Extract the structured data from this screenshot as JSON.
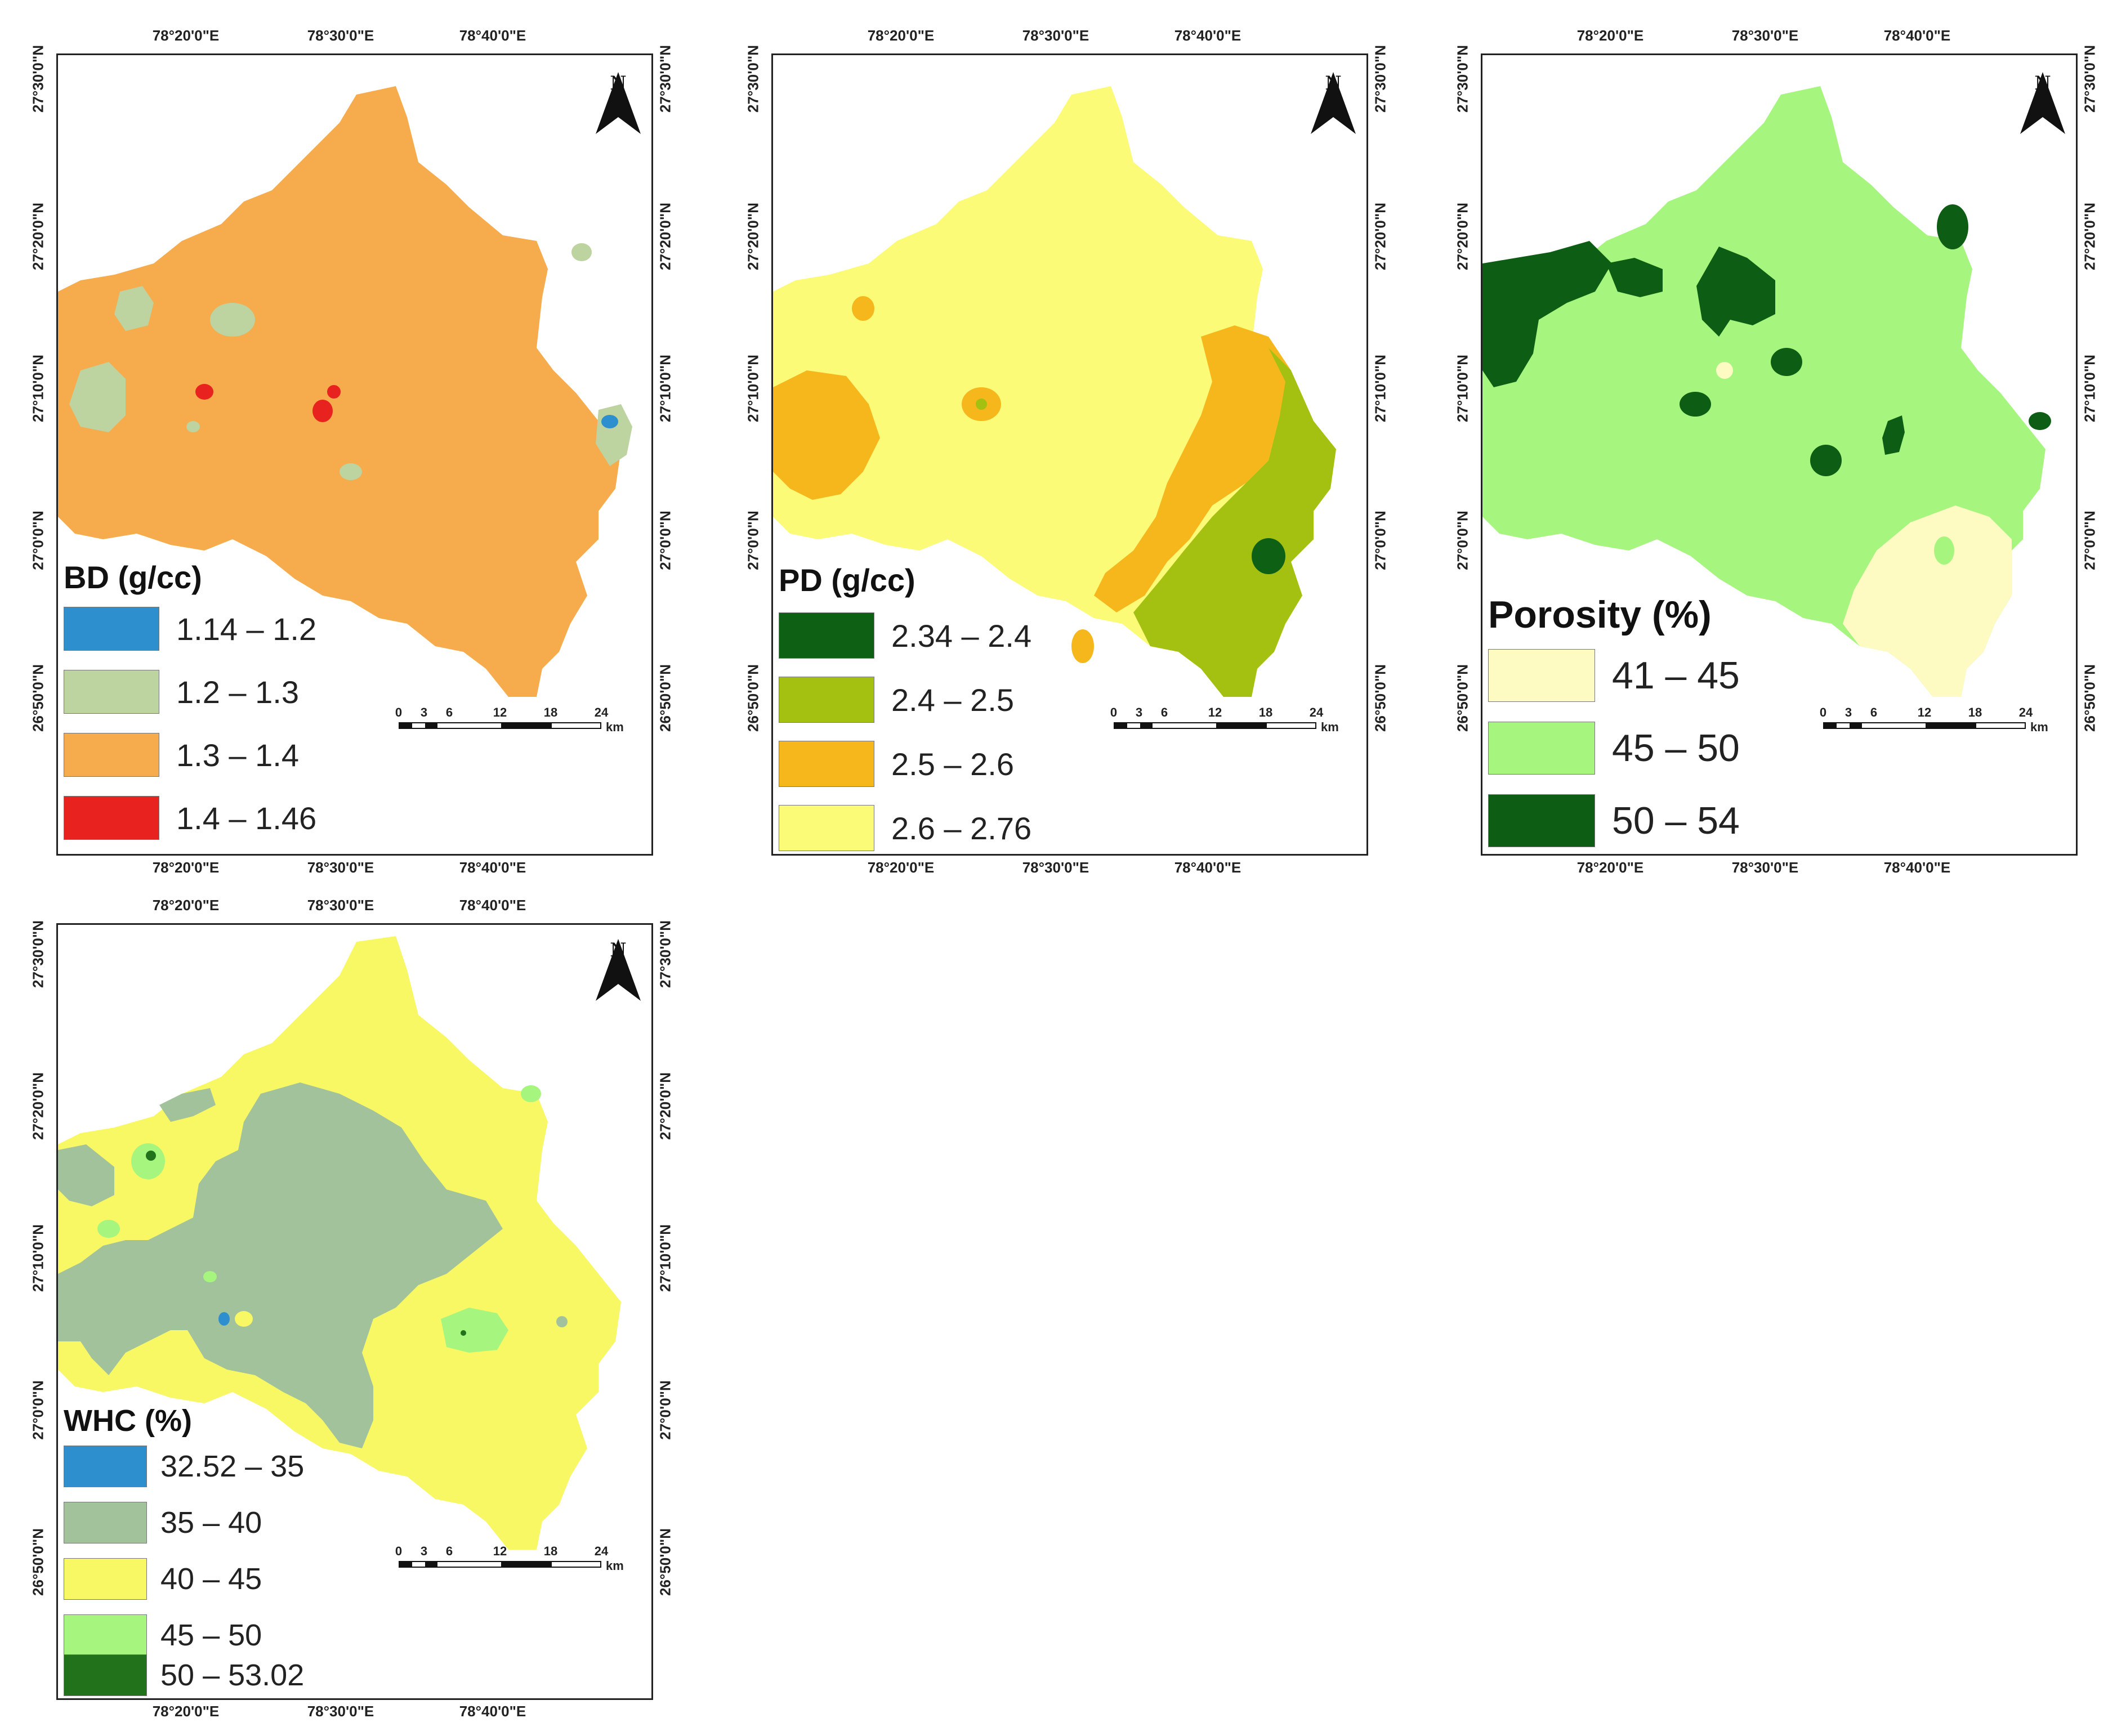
{
  "lon_ticks": [
    "78°20'0\"E",
    "78°30'0\"E",
    "78°40'0\"E"
  ],
  "lat_ticks": [
    "27°30'0\"N",
    "27°20'0\"N",
    "27°10'0\"N",
    "27°0'0\"N",
    "26°50'0\"N"
  ],
  "north_letter": "N",
  "scale": {
    "labels": [
      "0",
      "3",
      "6",
      "12",
      "18",
      "24"
    ],
    "unit": "km"
  },
  "maps": {
    "bd": {
      "title": "BD (g/cc)",
      "legend": [
        {
          "label": "1.14 – 1.2",
          "color": "#2e8fcf"
        },
        {
          "label": "1.2 – 1.3",
          "color": "#bdd3a0"
        },
        {
          "label": "1.3 – 1.4",
          "color": "#f6ab4c"
        },
        {
          "label": "1.4 – 1.46",
          "color": "#e8221f"
        }
      ]
    },
    "pd": {
      "title": "PD (g/cc)",
      "legend": [
        {
          "label": "2.34 – 2.4",
          "color": "#0e6114"
        },
        {
          "label": "2.4 – 2.5",
          "color": "#a4c011"
        },
        {
          "label": "2.5 – 2.6",
          "color": "#f6b71d"
        },
        {
          "label": "2.6 – 2.76",
          "color": "#fbfb78"
        }
      ]
    },
    "porosity": {
      "title": "Porosity (%)",
      "legend": [
        {
          "label": "41 – 45",
          "color": "#fdfbc2"
        },
        {
          "label": "45 – 50",
          "color": "#a6f57f"
        },
        {
          "label": "50 – 54",
          "color": "#0d5e14"
        }
      ]
    },
    "whc": {
      "title": "WHC (%)",
      "legend": [
        {
          "label": "32.52 – 35",
          "color": "#2e8fcf"
        },
        {
          "label": "35 – 40",
          "color": "#a1c29b"
        },
        {
          "label": "40 – 45",
          "color": "#f8f764"
        },
        {
          "label": "45 – 50",
          "color": "#a6f57f"
        },
        {
          "label": "50 – 53.02",
          "color": "#22711b"
        }
      ]
    }
  }
}
